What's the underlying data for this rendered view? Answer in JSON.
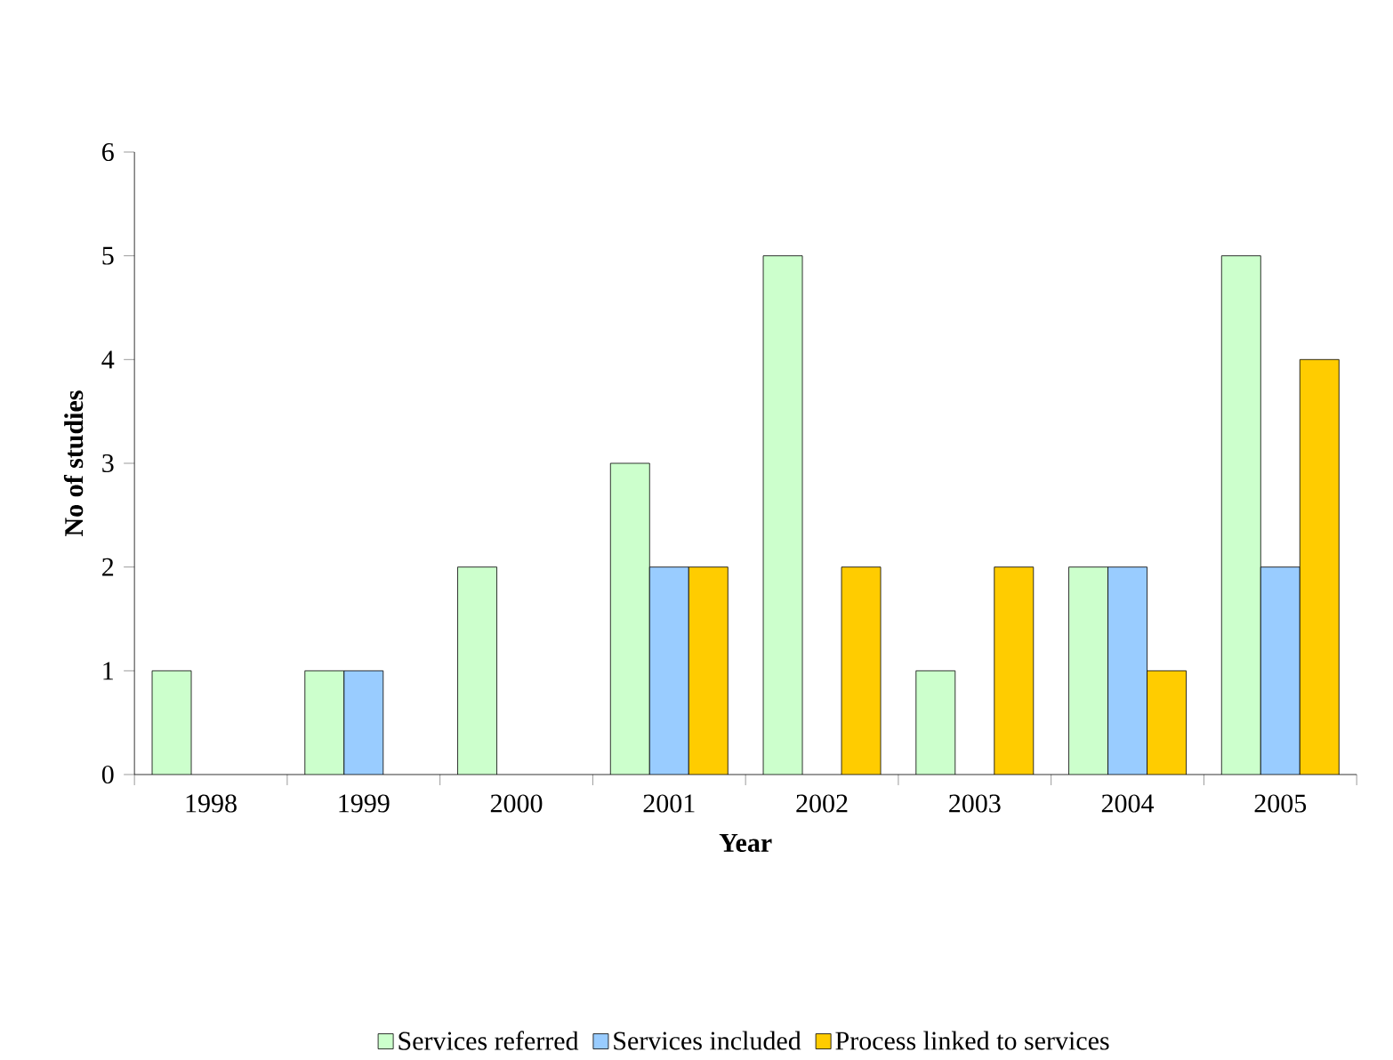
{
  "chart_data": {
    "type": "bar",
    "xlabel": "Year",
    "ylabel": "No of studies",
    "categories": [
      "1998",
      "1999",
      "2000",
      "2001",
      "2002",
      "2003",
      "2004",
      "2005"
    ],
    "series": [
      {
        "name": "Services referred",
        "color": "#ccffcc",
        "values": [
          1,
          1,
          2,
          3,
          5,
          1,
          2,
          5
        ]
      },
      {
        "name": "Services included",
        "color": "#99ccff",
        "values": [
          null,
          1,
          null,
          2,
          null,
          null,
          2,
          2
        ]
      },
      {
        "name": "Process linked to services",
        "color": "#ffcc00",
        "values": [
          null,
          null,
          null,
          2,
          2,
          2,
          1,
          4
        ]
      }
    ],
    "ylim": [
      0,
      6
    ],
    "yticks": [
      0,
      1,
      2,
      3,
      4,
      5,
      6
    ],
    "legend": "bottom"
  }
}
